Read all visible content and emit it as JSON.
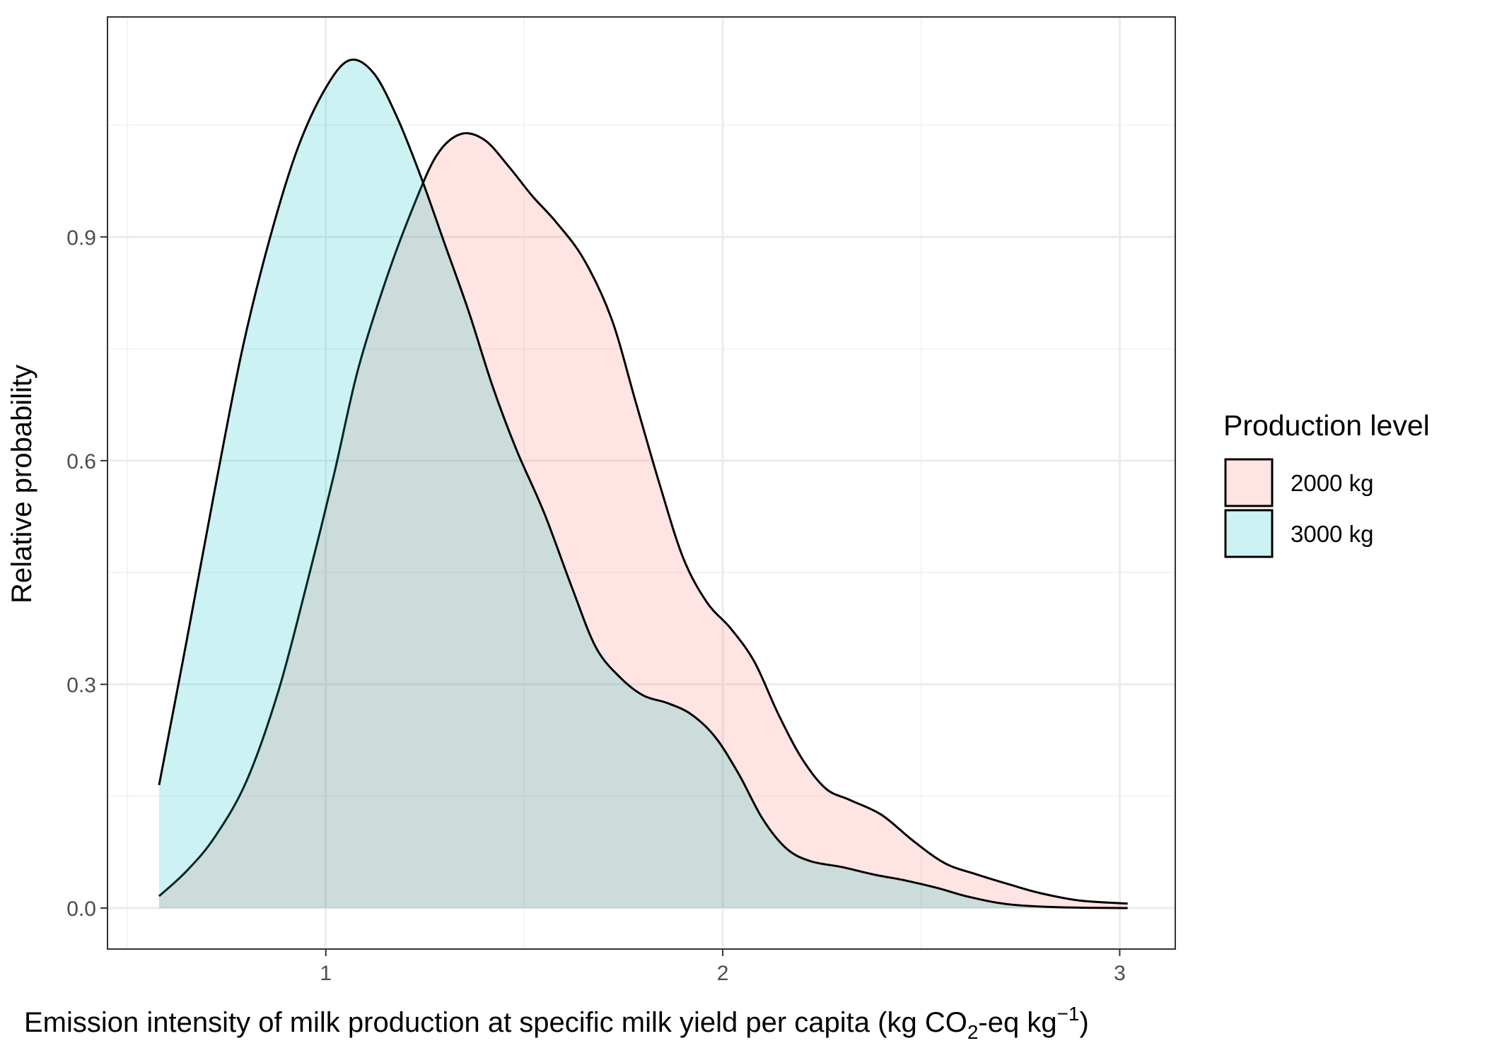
{
  "chart_data": {
    "type": "area",
    "xlabel_parts": {
      "main": "Emission intensity of milk production at specific milk yield per capita (kg CO",
      "sub": "2",
      "mid": "-eq kg",
      "sup": "−1",
      "end": ")"
    },
    "ylabel": "Relative probability",
    "xlim": [
      0.45,
      3.14
    ],
    "ylim": [
      -0.055,
      1.195
    ],
    "x_ticks": [
      1,
      2,
      3
    ],
    "x_tick_labels": [
      "1",
      "2",
      "3"
    ],
    "y_ticks": [
      0.0,
      0.3,
      0.6,
      0.9
    ],
    "y_tick_labels": [
      "0.0",
      "0.3",
      "0.6",
      "0.9"
    ],
    "grid": true,
    "legend": {
      "title": "Production level",
      "position": "right",
      "entries": [
        {
          "name": "2000 kg",
          "color": "#F8766D"
        },
        {
          "name": "3000 kg",
          "color": "#00BFC4"
        }
      ]
    },
    "series": [
      {
        "name": "2000 kg",
        "color": "#F8766D",
        "points": [
          [
            0.58,
            0.016
          ],
          [
            0.65,
            0.05
          ],
          [
            0.72,
            0.095
          ],
          [
            0.8,
            0.17
          ],
          [
            0.88,
            0.29
          ],
          [
            0.95,
            0.43
          ],
          [
            1.02,
            0.58
          ],
          [
            1.08,
            0.72
          ],
          [
            1.15,
            0.84
          ],
          [
            1.22,
            0.94
          ],
          [
            1.28,
            1.01
          ],
          [
            1.34,
            1.038
          ],
          [
            1.4,
            1.03
          ],
          [
            1.46,
            0.995
          ],
          [
            1.52,
            0.955
          ],
          [
            1.58,
            0.92
          ],
          [
            1.65,
            0.87
          ],
          [
            1.72,
            0.79
          ],
          [
            1.78,
            0.68
          ],
          [
            1.84,
            0.57
          ],
          [
            1.9,
            0.47
          ],
          [
            1.96,
            0.41
          ],
          [
            2.02,
            0.375
          ],
          [
            2.08,
            0.33
          ],
          [
            2.14,
            0.26
          ],
          [
            2.2,
            0.2
          ],
          [
            2.26,
            0.16
          ],
          [
            2.32,
            0.145
          ],
          [
            2.4,
            0.125
          ],
          [
            2.48,
            0.09
          ],
          [
            2.56,
            0.06
          ],
          [
            2.64,
            0.045
          ],
          [
            2.72,
            0.032
          ],
          [
            2.8,
            0.02
          ],
          [
            2.9,
            0.01
          ],
          [
            3.02,
            0.006
          ]
        ]
      },
      {
        "name": "3000 kg",
        "color": "#00BFC4",
        "points": [
          [
            0.58,
            0.165
          ],
          [
            0.65,
            0.36
          ],
          [
            0.72,
            0.56
          ],
          [
            0.79,
            0.75
          ],
          [
            0.86,
            0.9
          ],
          [
            0.93,
            1.02
          ],
          [
            1.0,
            1.1
          ],
          [
            1.06,
            1.137
          ],
          [
            1.12,
            1.12
          ],
          [
            1.18,
            1.06
          ],
          [
            1.24,
            0.98
          ],
          [
            1.3,
            0.89
          ],
          [
            1.36,
            0.8
          ],
          [
            1.42,
            0.7
          ],
          [
            1.48,
            0.615
          ],
          [
            1.55,
            0.53
          ],
          [
            1.62,
            0.43
          ],
          [
            1.68,
            0.35
          ],
          [
            1.74,
            0.31
          ],
          [
            1.8,
            0.285
          ],
          [
            1.86,
            0.275
          ],
          [
            1.92,
            0.26
          ],
          [
            1.98,
            0.23
          ],
          [
            2.04,
            0.18
          ],
          [
            2.1,
            0.12
          ],
          [
            2.16,
            0.08
          ],
          [
            2.22,
            0.063
          ],
          [
            2.3,
            0.055
          ],
          [
            2.38,
            0.045
          ],
          [
            2.46,
            0.037
          ],
          [
            2.54,
            0.027
          ],
          [
            2.62,
            0.015
          ],
          [
            2.72,
            0.005
          ],
          [
            2.85,
            0.001
          ],
          [
            3.02,
            0.0
          ]
        ]
      }
    ]
  }
}
